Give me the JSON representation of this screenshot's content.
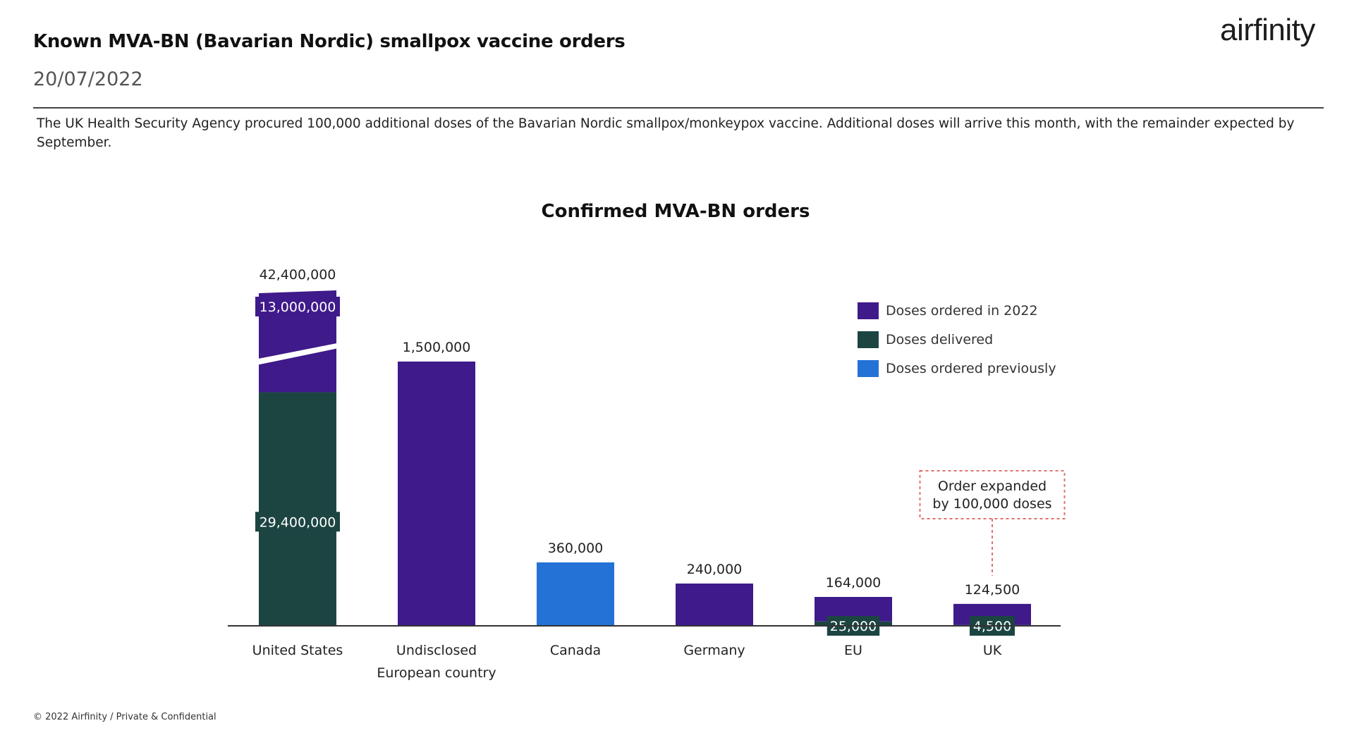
{
  "header": {
    "title": "Known MVA-BN (Bavarian Nordic) smallpox vaccine orders",
    "date": "20/07/2022",
    "brand": "airfinity",
    "description": "The UK Health Security Agency procured 100,000 additional doses of the Bavarian Nordic smallpox/monkeypox vaccine. Additional doses will arrive this month, with the remainder expected by September."
  },
  "footer": {
    "text": "© 2022 Airfinity / Private & Confidential"
  },
  "colors": {
    "ordered_2022": "#3f1a8a",
    "delivered": "#1c4542",
    "ordered_previously": "#2472d6",
    "annotation_border": "#e07070",
    "axis": "#333333"
  },
  "chart_data": {
    "type": "bar",
    "title": "Confirmed MVA-BN orders",
    "xlabel": "",
    "ylabel": "",
    "categories": [
      "United States",
      "Undisclosed European country",
      "Canada",
      "Germany",
      "EU",
      "UK"
    ],
    "category_lines": [
      [
        "United States"
      ],
      [
        "Undisclosed",
        "European country"
      ],
      [
        "Canada"
      ],
      [
        "Germany"
      ],
      [
        "EU"
      ],
      [
        "UK"
      ]
    ],
    "totals": [
      42400000,
      1500000,
      360000,
      240000,
      164000,
      124500
    ],
    "total_labels": [
      "42,400,000",
      "1,500,000",
      "360,000",
      "240,000",
      "164,000",
      "124,500"
    ],
    "series": [
      {
        "name": "Doses ordered in 2022",
        "key": "ordered_2022",
        "values": [
          13000000,
          1500000,
          0,
          240000,
          139000,
          120000
        ]
      },
      {
        "name": "Doses delivered",
        "key": "delivered",
        "values": [
          29400000,
          0,
          0,
          0,
          25000,
          4500
        ]
      },
      {
        "name": "Doses ordered previously",
        "key": "ordered_previously",
        "values": [
          0,
          0,
          360000,
          0,
          0,
          0
        ]
      }
    ],
    "inner_labels": [
      {
        "category_index": 0,
        "series_key": "ordered_2022",
        "text": "13,000,000"
      },
      {
        "category_index": 0,
        "series_key": "delivered",
        "text": "29,400,000"
      },
      {
        "category_index": 4,
        "series_key": "delivered",
        "text": "25,000"
      },
      {
        "category_index": 5,
        "series_key": "delivered",
        "text": "4,500"
      }
    ],
    "axis_break": {
      "category_index": 0
    },
    "annotation": {
      "category_index": 5,
      "lines": [
        "Order expanded",
        "by 100,000 doses"
      ]
    },
    "legend": {
      "placement": "top-right",
      "items": [
        {
          "label": "Doses ordered in 2022",
          "key": "ordered_2022"
        },
        {
          "label": "Doses delivered",
          "key": "delivered"
        },
        {
          "label": "Doses ordered previously",
          "key": "ordered_previously"
        }
      ]
    }
  }
}
